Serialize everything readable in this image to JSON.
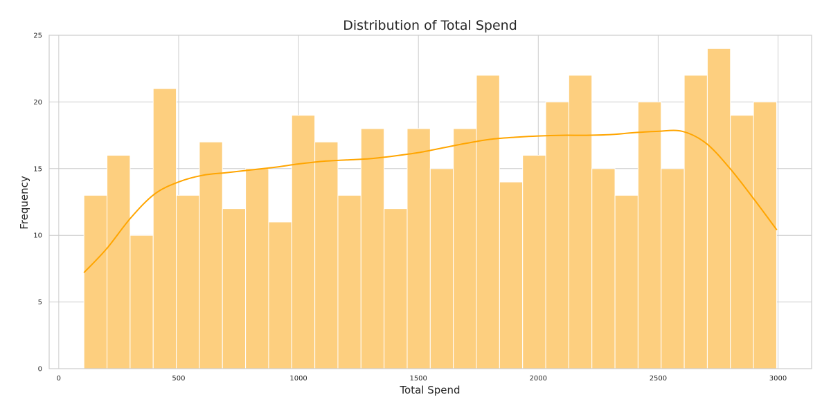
{
  "chart_data": {
    "type": "bar",
    "subtype": "histogram-with-kde",
    "title": "Distribution of Total Spend",
    "xlabel": "Total Spend",
    "ylabel": "Frequency",
    "xlim": [
      -40,
      3140
    ],
    "ylim": [
      0,
      25
    ],
    "xticks": [
      0,
      500,
      1000,
      1500,
      2000,
      2500,
      3000
    ],
    "yticks": [
      0,
      5,
      10,
      15,
      20,
      25
    ],
    "grid": true,
    "bin_start": 105,
    "bin_width": 96.3,
    "values": [
      13,
      16,
      10,
      21,
      13,
      17,
      12,
      15,
      11,
      19,
      17,
      13,
      18,
      12,
      18,
      15,
      18,
      22,
      14,
      16,
      20,
      22,
      15,
      13,
      20,
      15,
      22,
      24,
      19,
      20
    ],
    "kde": {
      "x": [
        105,
        200,
        300,
        400,
        500,
        600,
        700,
        800,
        900,
        1000,
        1100,
        1200,
        1300,
        1400,
        1500,
        1600,
        1700,
        1800,
        1900,
        2000,
        2100,
        2200,
        2300,
        2400,
        2500,
        2600,
        2700,
        2800,
        2900,
        2995
      ],
      "y": [
        7.2,
        9.0,
        11.3,
        13.1,
        14.0,
        14.5,
        14.7,
        14.9,
        15.1,
        15.35,
        15.55,
        15.65,
        15.75,
        15.95,
        16.2,
        16.55,
        16.9,
        17.2,
        17.35,
        17.45,
        17.5,
        17.5,
        17.55,
        17.7,
        17.8,
        17.8,
        16.9,
        15.0,
        12.7,
        10.4
      ]
    },
    "colors": {
      "bar_fill": "#fdcf7f",
      "bar_edge": "#ffffff",
      "kde_line": "#ffa500",
      "grid": "#cccccc"
    }
  }
}
